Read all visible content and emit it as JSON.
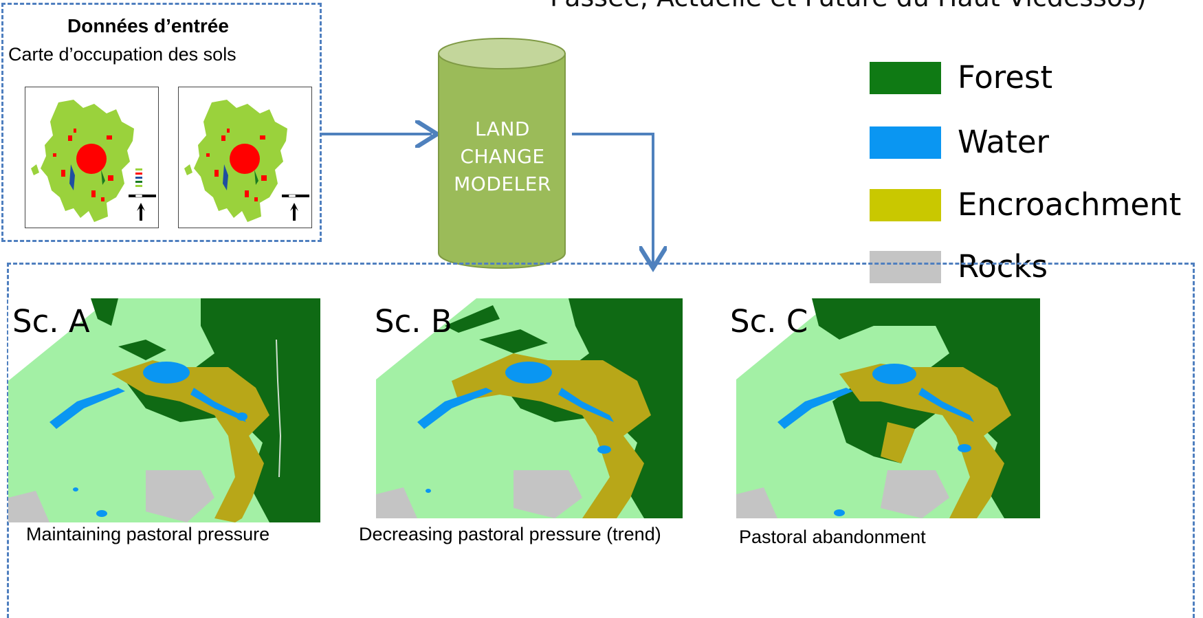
{
  "header": {
    "title": "Passée, Actuelle et Future du Haut-Vicdessos)"
  },
  "input": {
    "title": "Données d’entrée",
    "subtitle": "Carte d’occupation des sols"
  },
  "model": {
    "label_lines": [
      "LAND",
      "CHANGE",
      "MODELER"
    ]
  },
  "legend": [
    {
      "label": "Forest",
      "color": "#0f7a14"
    },
    {
      "label": "Water",
      "color": "#0a96f2"
    },
    {
      "label": "Encroachment",
      "color": "#c9c800"
    },
    {
      "label": "Rocks",
      "color": "#c4c4c4"
    }
  ],
  "scenarios": [
    {
      "label": "Sc. A",
      "caption": "Maintaining pastoral pressure"
    },
    {
      "label": "Sc. B",
      "caption": "Decreasing pastoral pressure (trend)"
    },
    {
      "label": "Sc. C",
      "caption": "Pastoral abandonment"
    }
  ],
  "colors": {
    "dash": "#4f7fbf",
    "cylinder": "#9bbb59",
    "cylinder_top": "#c3d69b",
    "arrow": "#4f81bd",
    "meadow": "#a3f0a5",
    "landuse_green": "#9ad23c",
    "urban_red": "#ff0000"
  }
}
